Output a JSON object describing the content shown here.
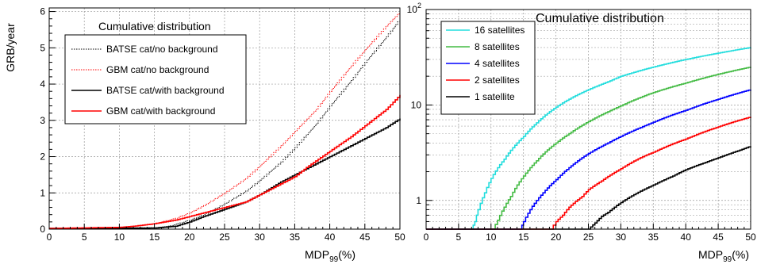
{
  "chart_data": [
    {
      "type": "line",
      "title": "Cumulative distribution",
      "xlabel_main": "MDP",
      "xlabel_sub": "99",
      "xlabel_tail": "(%)",
      "ylabel": "GRB/year",
      "xlim": [
        0,
        50
      ],
      "ylim": [
        0,
        6.1
      ],
      "xscale": "linear",
      "yscale": "linear",
      "grid": true,
      "legend_position": "top-left",
      "xticks": [
        0,
        5,
        10,
        15,
        20,
        25,
        30,
        35,
        40,
        45,
        50
      ],
      "yticks": [
        0,
        1,
        2,
        3,
        4,
        5,
        6
      ],
      "series": [
        {
          "name": "BATSE cat/no background",
          "color": "#000000",
          "dashed": true,
          "x": [
            0,
            15,
            17,
            20,
            22,
            25,
            28,
            30,
            33,
            35,
            38,
            40,
            43,
            45,
            48,
            50
          ],
          "y": [
            0.02,
            0.04,
            0.08,
            0.25,
            0.4,
            0.7,
            1.05,
            1.35,
            1.85,
            2.25,
            2.9,
            3.4,
            4.1,
            4.6,
            5.3,
            5.8
          ]
        },
        {
          "name": "GBM cat/no background",
          "color": "#ff0000",
          "dashed": true,
          "x": [
            0,
            10,
            12,
            15,
            18,
            20,
            22,
            25,
            28,
            30,
            33,
            35,
            38,
            40,
            43,
            45,
            48,
            50
          ],
          "y": [
            0.02,
            0.05,
            0.08,
            0.15,
            0.3,
            0.45,
            0.65,
            1.0,
            1.4,
            1.75,
            2.3,
            2.7,
            3.3,
            3.8,
            4.5,
            4.95,
            5.6,
            6.0
          ]
        },
        {
          "name": "BATSE cat/with background",
          "color": "#000000",
          "dashed": false,
          "x": [
            0,
            15,
            18,
            20,
            22,
            25,
            28,
            30,
            33,
            35,
            38,
            40,
            43,
            45,
            48,
            50
          ],
          "y": [
            0.02,
            0.03,
            0.08,
            0.2,
            0.35,
            0.55,
            0.75,
            0.95,
            1.3,
            1.5,
            1.8,
            2.0,
            2.3,
            2.5,
            2.8,
            3.05
          ]
        },
        {
          "name": "GBM cat/with background",
          "color": "#ff0000",
          "dashed": false,
          "x": [
            0,
            10,
            12,
            15,
            18,
            20,
            22,
            25,
            28,
            30,
            33,
            35,
            37,
            40,
            43,
            45,
            48,
            50
          ],
          "y": [
            0.02,
            0.05,
            0.08,
            0.15,
            0.25,
            0.35,
            0.45,
            0.6,
            0.75,
            0.95,
            1.25,
            1.45,
            1.75,
            2.15,
            2.55,
            2.85,
            3.3,
            3.7
          ]
        }
      ]
    },
    {
      "type": "line",
      "title": "Cumulative distribution",
      "xlabel_main": "MDP",
      "xlabel_sub": "99",
      "xlabel_tail": "(%)",
      "ylabel": "",
      "xlim": [
        0,
        50
      ],
      "ylim": [
        0.5,
        100
      ],
      "xscale": "linear",
      "yscale": "log",
      "grid": true,
      "legend_position": "top-left",
      "xticks": [
        0,
        5,
        10,
        15,
        20,
        25,
        30,
        35,
        40,
        45,
        50
      ],
      "yticks_major": [
        {
          "value": 1,
          "label": "1"
        },
        {
          "value": 10,
          "label": "10"
        },
        {
          "value": 100,
          "label": "10",
          "sup": "2"
        }
      ],
      "series": [
        {
          "name": "16 satellites",
          "color": "#22dddd",
          "x": [
            0,
            7,
            7.5,
            8,
            9,
            10,
            12,
            14,
            15,
            17,
            20,
            22,
            25,
            28,
            30,
            35,
            40,
            45,
            50
          ],
          "y": [
            0.5,
            0.5,
            0.6,
            0.8,
            1.2,
            1.7,
            2.7,
            4.0,
            4.7,
            6.5,
            9.5,
            11.5,
            14.5,
            17.5,
            20,
            25,
            30,
            35,
            40
          ]
        },
        {
          "name": "8 satellites",
          "color": "#44bb44",
          "x": [
            0,
            10.3,
            11,
            12,
            13,
            15,
            17,
            20,
            22,
            25,
            28,
            30,
            35,
            40,
            45,
            50
          ],
          "y": [
            0.5,
            0.5,
            0.62,
            0.85,
            1.1,
            1.8,
            2.6,
            4.0,
            5.0,
            6.7,
            8.5,
            9.8,
            13.5,
            17,
            21,
            25
          ]
        },
        {
          "name": "4 satellites",
          "color": "#0000ff",
          "x": [
            0,
            14.5,
            15,
            16,
            17,
            18,
            20,
            22,
            25,
            28,
            30,
            33,
            35,
            40,
            45,
            50
          ],
          "y": [
            0.5,
            0.5,
            0.6,
            0.8,
            1.0,
            1.2,
            1.65,
            2.2,
            3.1,
            4.0,
            4.7,
            5.8,
            6.6,
            8.8,
            11.5,
            14.5
          ]
        },
        {
          "name": "2 satellites",
          "color": "#ff0000",
          "x": [
            0,
            19.2,
            20,
            21,
            22,
            24,
            25,
            27,
            30,
            33,
            35,
            40,
            45,
            50
          ],
          "y": [
            0.5,
            0.5,
            0.6,
            0.7,
            0.85,
            1.1,
            1.3,
            1.6,
            2.15,
            2.8,
            3.2,
            4.4,
            5.9,
            7.5
          ]
        },
        {
          "name": "1 satellite",
          "color": "#000000",
          "x": [
            0,
            25,
            26,
            27,
            28,
            30,
            32,
            35,
            38,
            40,
            43,
            45,
            48,
            50
          ],
          "y": [
            0.5,
            0.5,
            0.58,
            0.68,
            0.75,
            0.95,
            1.15,
            1.45,
            1.8,
            2.1,
            2.5,
            2.8,
            3.3,
            3.7
          ]
        }
      ]
    }
  ]
}
